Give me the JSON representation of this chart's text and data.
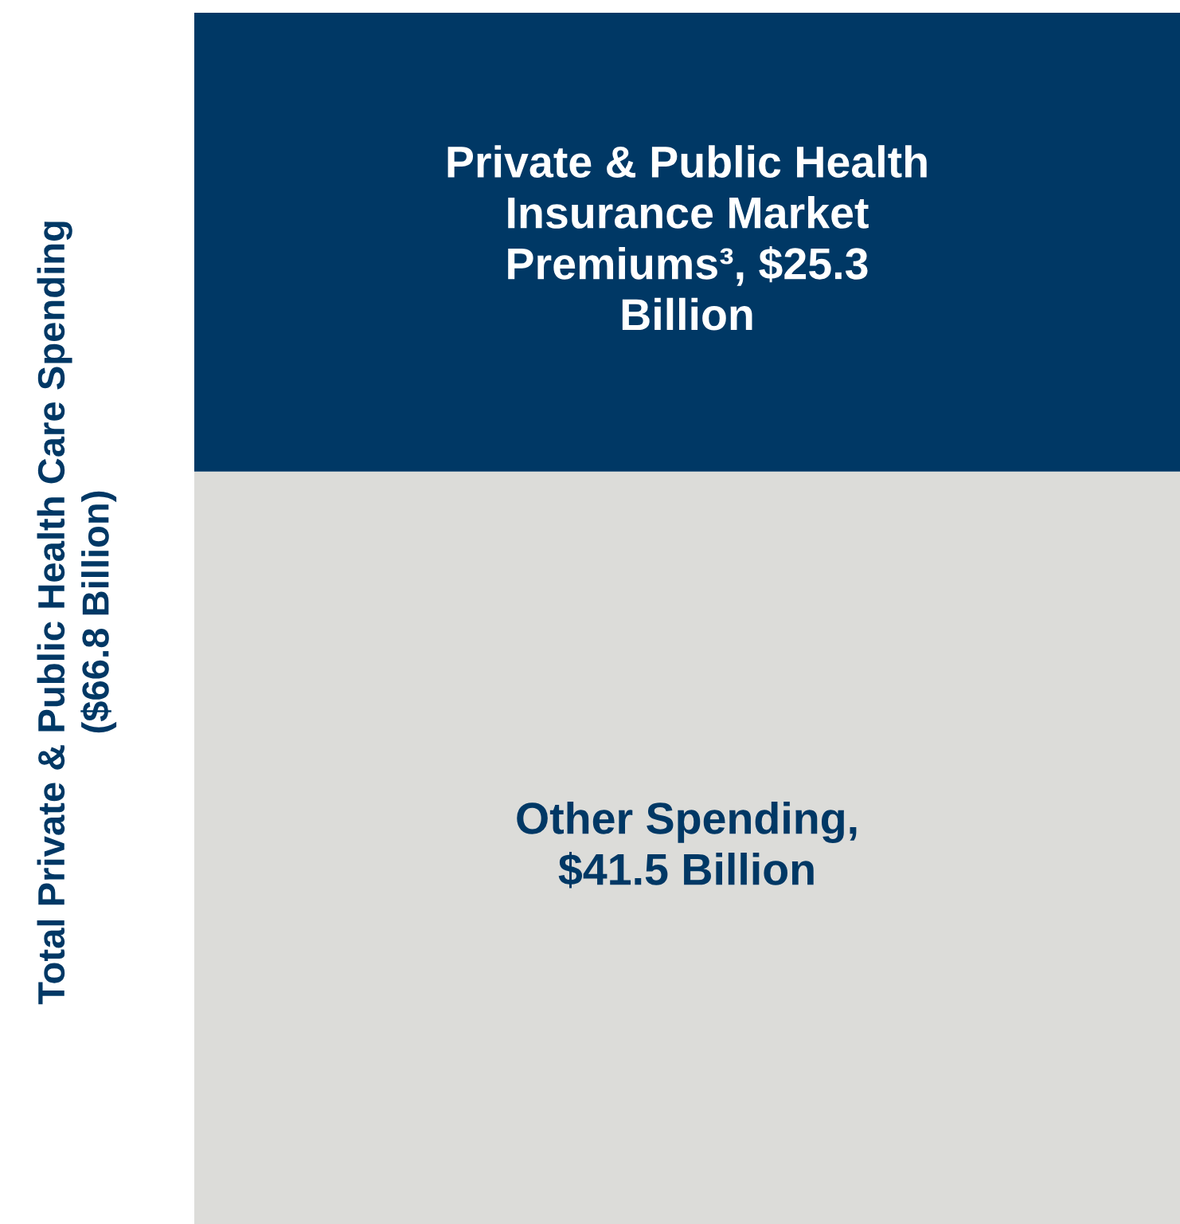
{
  "chart_data": {
    "type": "bar",
    "stacked": true,
    "categories": [
      null
    ],
    "ylabel": "Total Private & Public Health Care Spending\n($66.8 Billion)",
    "ylim": [
      0,
      66.8
    ],
    "series": [
      {
        "color": "#dcdcd9",
        "values": [
          41.5
        ],
        "value_labels": [
          "Other Spending,\n$41.5 Billion"
        ]
      },
      {
        "color": "#003865",
        "values": [
          25.3
        ],
        "value_labels": [
          "Private & Public Health\nInsurance Market\nPremiums³, $25.3\nBillion"
        ]
      }
    ]
  }
}
